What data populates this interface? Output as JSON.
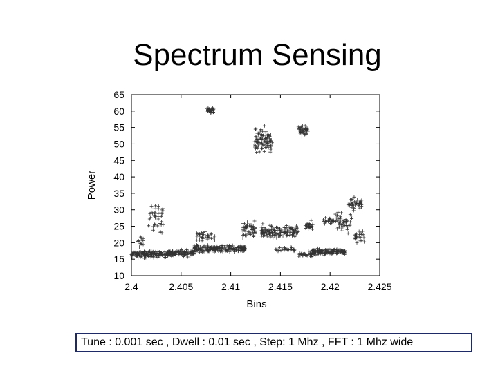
{
  "slide": {
    "title": "Spectrum Sensing",
    "caption": "Tune : 0.001 sec , Dwell : 0.01 sec , Step: 1 Mhz , FFT : 1 Mhz wide"
  },
  "chart_data": {
    "type": "scatter",
    "title": "",
    "xlabel": "Bins",
    "ylabel": "Power",
    "xlim": [
      2.4,
      2.425
    ],
    "ylim": [
      10,
      65
    ],
    "x_ticks": [
      2.4,
      2.405,
      2.41,
      2.415,
      2.42,
      2.425
    ],
    "x_tick_labels": [
      "2.4",
      "2.405",
      "2.41",
      "2.415",
      "2.42",
      "2.425"
    ],
    "y_ticks": [
      10,
      15,
      20,
      25,
      30,
      35,
      40,
      45,
      50,
      55,
      60,
      65
    ],
    "y_tick_labels": [
      "10",
      "15",
      "20",
      "25",
      "30",
      "35",
      "40",
      "45",
      "50",
      "55",
      "60",
      "65"
    ],
    "grid": false,
    "marker": "+",
    "colors": {
      "points": "#333333",
      "axes": "#000000"
    },
    "clusters": [
      {
        "x_range": [
          2.4,
          2.4035
        ],
        "y_center": 16.5,
        "y_spread": 1.4,
        "count": 140
      },
      {
        "x_range": [
          2.4006,
          2.4012
        ],
        "y_center": 20,
        "y_spread": 2.5,
        "count": 12
      },
      {
        "x_range": [
          2.4017,
          2.4032
        ],
        "y_center": 27,
        "y_spread": 8,
        "count": 40
      },
      {
        "x_range": [
          2.4035,
          2.4063
        ],
        "y_center": 16.8,
        "y_spread": 1.3,
        "count": 120
      },
      {
        "x_range": [
          2.4063,
          2.4115
        ],
        "y_center": 18.2,
        "y_spread": 1.5,
        "count": 200
      },
      {
        "x_range": [
          2.4065,
          2.4085
        ],
        "y_center": 22,
        "y_spread": 2.5,
        "count": 30
      },
      {
        "x_range": [
          2.4075,
          2.4083
        ],
        "y_center": 60.2,
        "y_spread": 1,
        "count": 35
      },
      {
        "x_range": [
          2.4112,
          2.4125
        ],
        "y_center": 24,
        "y_spread": 3.5,
        "count": 55
      },
      {
        "x_range": [
          2.4123,
          2.4142
        ],
        "y_center": 51,
        "y_spread": 5.5,
        "count": 85
      },
      {
        "x_range": [
          2.413,
          2.4168
        ],
        "y_center": 23.5,
        "y_spread": 2.5,
        "count": 140
      },
      {
        "x_range": [
          2.4145,
          2.4165
        ],
        "y_center": 18,
        "y_spread": 1.2,
        "count": 30
      },
      {
        "x_range": [
          2.4168,
          2.4182
        ],
        "y_center": 16.5,
        "y_spread": 1.2,
        "count": 30
      },
      {
        "x_range": [
          2.4168,
          2.4178
        ],
        "y_center": 54,
        "y_spread": 2.3,
        "count": 40
      },
      {
        "x_range": [
          2.4175,
          2.4183
        ],
        "y_center": 25,
        "y_spread": 2,
        "count": 25
      },
      {
        "x_range": [
          2.4182,
          2.4215
        ],
        "y_center": 17.2,
        "y_spread": 1.3,
        "count": 130
      },
      {
        "x_range": [
          2.4193,
          2.4204
        ],
        "y_center": 26.5,
        "y_spread": 1.5,
        "count": 25
      },
      {
        "x_range": [
          2.4205,
          2.4222
        ],
        "y_center": 26,
        "y_spread": 4,
        "count": 45
      },
      {
        "x_range": [
          2.4218,
          2.4232
        ],
        "y_center": 32,
        "y_spread": 2.5,
        "count": 40
      },
      {
        "x_range": [
          2.4225,
          2.4235
        ],
        "y_center": 22,
        "y_spread": 3,
        "count": 25
      }
    ]
  }
}
